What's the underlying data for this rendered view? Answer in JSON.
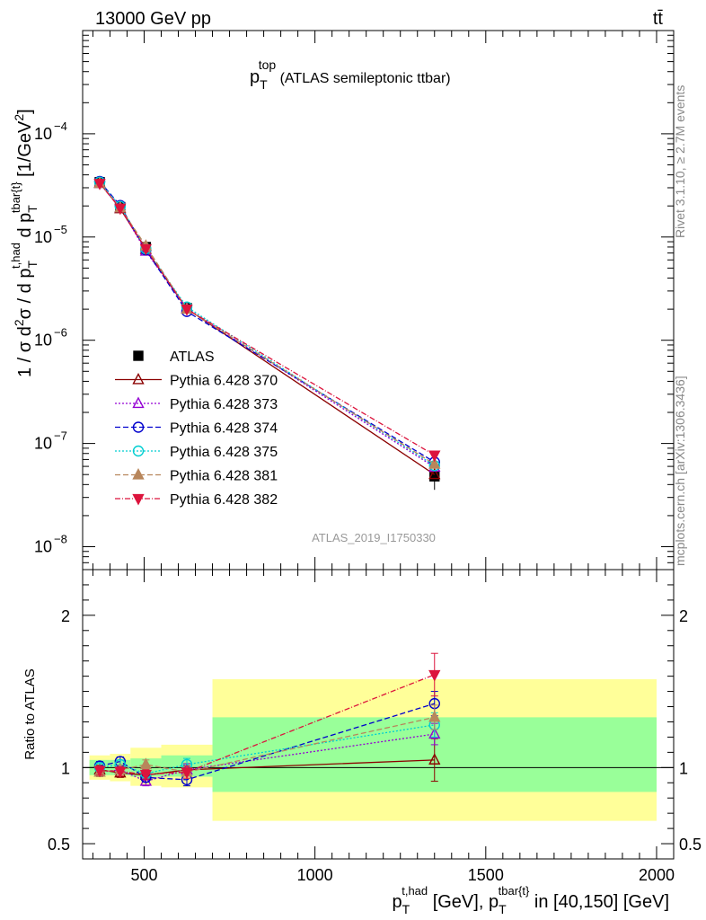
{
  "header": {
    "left": "13000 GeV pp",
    "right": "tt̄"
  },
  "side_labels": {
    "rivet": "Rivet 3.1.10, ≥ 2.7M events",
    "mcplots": "mcplots.cern.ch [arXiv:1306.3436]"
  },
  "watermark": "ATLAS_2019_I1750330",
  "chart_data": [
    {
      "type": "line",
      "panel": "main",
      "title": {
        "main": "p",
        "sub": "T",
        "sup": "top",
        "rest": " (ATLAS semileptonic ttbar)"
      },
      "ylabel": "1 / σ d²σ / d p_T^{t,had} d p_T^{tbar{t}} [1/GeV²]",
      "ylabel_parts": {
        "a": "1 / σ d",
        "b": "2",
        "c": "σ / d p",
        "d": "T",
        "e": "t,had",
        "f": " d p",
        "g": "T",
        "h": "tbar{t}",
        "i": " [1/GeV",
        "j": "2",
        "k": "]"
      },
      "xlim": [
        320,
        2050
      ],
      "ylim": [
        6e-09,
        0.001
      ],
      "yscale": "log",
      "ytick_labels": [
        {
          "value": 1e-08,
          "base": "10",
          "exp": "−8"
        },
        {
          "value": 1e-07,
          "base": "10",
          "exp": "−7"
        },
        {
          "value": 1e-06,
          "base": "10",
          "exp": "−6"
        },
        {
          "value": 1e-05,
          "base": "10",
          "exp": "−5"
        },
        {
          "value": 0.0001,
          "base": "10",
          "exp": "−4"
        }
      ],
      "legend_position": "middle-left",
      "x": [
        370,
        430,
        505,
        625,
        1350
      ],
      "series": [
        {
          "name": "ATLAS",
          "color": "#000000",
          "marker": "square-filled",
          "dash": "none",
          "values": [
            3.4e-05,
            1.95e-05,
            8e-06,
            2.05e-06,
            4.8e-08
          ],
          "err": [
            0.08,
            0.08,
            0.08,
            0.08,
            0.35
          ]
        },
        {
          "name": "Pythia 6.428 370",
          "color": "#8b0000",
          "marker": "triangle-open",
          "dash": "none",
          "values": [
            3.35e-05,
            1.88e-05,
            7.6e-06,
            2.02e-06,
            5e-08
          ]
        },
        {
          "name": "Pythia 6.428 373",
          "color": "#9400d3",
          "marker": "triangle-open",
          "dash": "2,2",
          "values": [
            3.3e-05,
            1.92e-05,
            7.3e-06,
            2.02e-06,
            5.9e-08
          ]
        },
        {
          "name": "Pythia 6.428 374",
          "color": "#0000cd",
          "marker": "circle-open",
          "dash": "6,3",
          "values": [
            3.45e-05,
            2.02e-05,
            7.5e-06,
            1.9e-06,
            6.6e-08
          ]
        },
        {
          "name": "Pythia 6.428 375",
          "color": "#00ced1",
          "marker": "circle-open",
          "dash": "2,2",
          "values": [
            3.4e-05,
            1.98e-05,
            7.7e-06,
            2.1e-06,
            6.1e-08
          ]
        },
        {
          "name": "Pythia 6.428 381",
          "color": "#b8865b",
          "marker": "triangle-filled",
          "dash": "6,3",
          "values": [
            3.3e-05,
            1.92e-05,
            8.2e-06,
            2e-06,
            6.3e-08
          ]
        },
        {
          "name": "Pythia 6.428 382",
          "color": "#dc143c",
          "marker": "triangle-down-filled",
          "dash": "6,2,1,2",
          "values": [
            3.3e-05,
            1.9e-05,
            7.7e-06,
            2e-06,
            7.7e-08
          ]
        }
      ]
    },
    {
      "type": "line",
      "panel": "ratio",
      "ylabel": "Ratio to ATLAS",
      "xlabel": "p_T^{t,had} [GeV], p_T^{tbar{t}} in [40,150] [GeV]",
      "xlabel_parts": {
        "a": "p",
        "b": "T",
        "c": "t,had",
        "d": " [GeV], p",
        "e": "T",
        "f": "tbar{t}",
        "g": " in [40,150] [GeV]"
      },
      "xlim": [
        320,
        2050
      ],
      "ylim": [
        0.4,
        2.3
      ],
      "ytick_labels": [
        {
          "value": 0.5,
          "label": "0.5"
        },
        {
          "value": 1,
          "label": "1"
        },
        {
          "value": 2,
          "label": "2"
        }
      ],
      "xtick_labels": [
        {
          "value": 500,
          "label": "500"
        },
        {
          "value": 1000,
          "label": "1000"
        },
        {
          "value": 1500,
          "label": "1500"
        },
        {
          "value": 2000,
          "label": "2000"
        }
      ],
      "bins": [
        [
          340,
          400
        ],
        [
          400,
          460
        ],
        [
          460,
          550
        ],
        [
          550,
          700
        ],
        [
          700,
          2000
        ]
      ],
      "band_green": [
        [
          0.95,
          1.05
        ],
        [
          0.95,
          1.05
        ],
        [
          0.94,
          1.06
        ],
        [
          0.94,
          1.08
        ],
        [
          0.84,
          1.33
        ]
      ],
      "band_yellow": [
        [
          0.92,
          1.08
        ],
        [
          0.91,
          1.09
        ],
        [
          0.88,
          1.13
        ],
        [
          0.87,
          1.15
        ],
        [
          0.65,
          1.58
        ]
      ],
      "x": [
        370,
        430,
        505,
        625,
        1350
      ],
      "series": [
        {
          "name": "Pythia 6.428 370",
          "color": "#8b0000",
          "marker": "triangle-open",
          "dash": "none",
          "values": [
            0.985,
            0.965,
            0.95,
            0.985,
            1.05
          ],
          "err": [
            0.03,
            0.03,
            0.03,
            0.04,
            0.14
          ]
        },
        {
          "name": "Pythia 6.428 373",
          "color": "#9400d3",
          "marker": "triangle-open",
          "dash": "2,2",
          "values": [
            0.97,
            0.985,
            0.91,
            0.985,
            1.22
          ],
          "err": [
            0.03,
            0.03,
            0.03,
            0.04,
            0.07
          ]
        },
        {
          "name": "Pythia 6.428 374",
          "color": "#0000cd",
          "marker": "circle-open",
          "dash": "6,3",
          "values": [
            1.01,
            1.04,
            0.935,
            0.92,
            1.42
          ],
          "err": [
            0.03,
            0.03,
            0.03,
            0.04,
            0.08
          ]
        },
        {
          "name": "Pythia 6.428 375",
          "color": "#00ced1",
          "marker": "circle-open",
          "dash": "2,2",
          "values": [
            1.0,
            1.02,
            0.96,
            1.02,
            1.28
          ],
          "err": [
            0.03,
            0.03,
            0.03,
            0.04,
            0.08
          ]
        },
        {
          "name": "Pythia 6.428 381",
          "color": "#b8865b",
          "marker": "triangle-filled",
          "dash": "6,3",
          "values": [
            0.97,
            0.985,
            1.02,
            0.97,
            1.33
          ],
          "err": [
            0.03,
            0.03,
            0.03,
            0.04,
            0.08
          ]
        },
        {
          "name": "Pythia 6.428 382",
          "color": "#dc143c",
          "marker": "triangle-down-filled",
          "dash": "6,2,1,2",
          "values": [
            0.98,
            0.975,
            0.955,
            0.97,
            1.61
          ],
          "err": [
            0.03,
            0.03,
            0.03,
            0.04,
            0.14
          ]
        }
      ]
    }
  ]
}
